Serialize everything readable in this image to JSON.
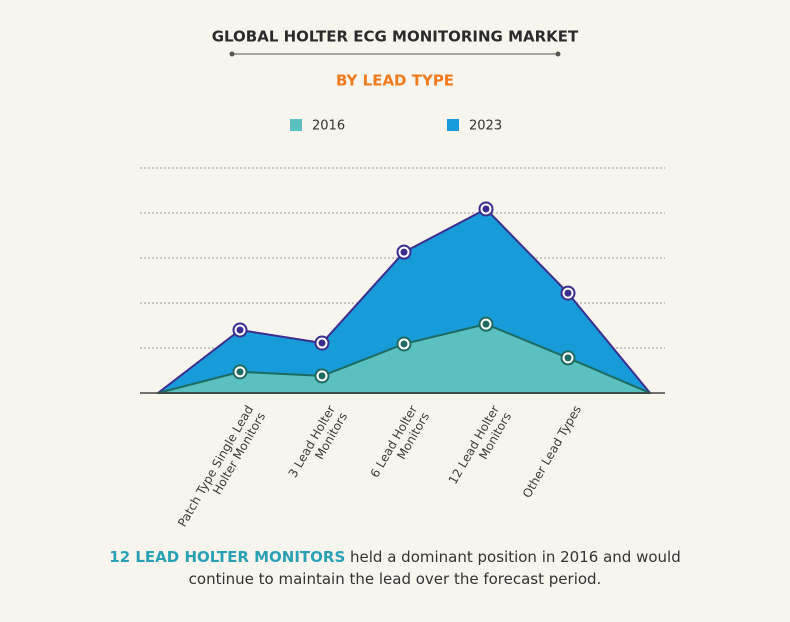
{
  "chart_data": {
    "type": "area",
    "title": "GLOBAL HOLTER ECG MONITORING MARKET",
    "subtitle": "BY LEAD TYPE",
    "categories": [
      null,
      "Patch Type Single Lead\nHolter Monitors",
      "3 Lead Holter\nMonitors",
      "6 Lead Holter\nMonitors",
      "12 Lead Holter\nMonitors",
      "Other Lead Types",
      null
    ],
    "series": [
      {
        "name": "2023",
        "color": "#189bd9",
        "line_color": "#3b2d8f",
        "values": [
          0,
          1.4,
          1.11,
          3.13,
          4.09,
          2.22,
          0
        ]
      },
      {
        "name": "2016",
        "color": "#5bc0c0",
        "line_color": "#1d6b60",
        "values": [
          0,
          0.47,
          0.38,
          1.09,
          1.53,
          0.78,
          0
        ]
      }
    ],
    "ylim": [
      0,
      5
    ],
    "yticks": [
      0,
      1,
      2,
      3,
      4,
      5
    ],
    "grid": true,
    "footnote_highlight": "12 LEAD HOLTER MONITORS",
    "footnote_text": "held a dominant position in 2016 and would continue to maintain the lead over the forecast period."
  }
}
